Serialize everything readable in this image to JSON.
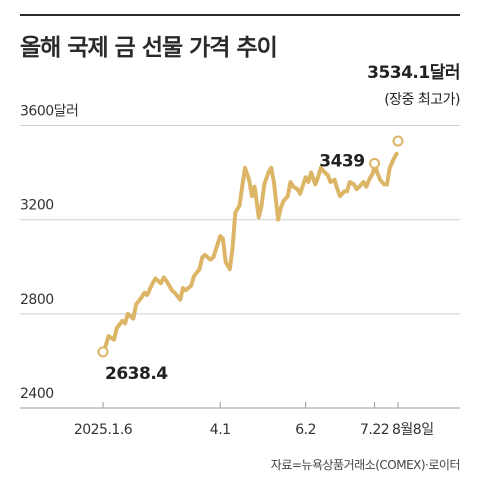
{
  "title": "올해 국제 금 선물 가격 추이",
  "source": "자료=뉴욕상품거래소(COMEX)·로이터",
  "colors": {
    "line": "#DDB567",
    "axis": "#999999",
    "text": "#222222"
  },
  "chart_data": {
    "type": "line",
    "title": "올해 국제 금 선물 가격 추이",
    "x_tick_labels": [
      "2025.1.6",
      "4.1",
      "6.2",
      "7.22",
      "8월8일"
    ],
    "x_tick_dates": [
      "2025-01-06",
      "2025-04-01",
      "2025-06-02",
      "2025-07-22",
      "2025-08-08"
    ],
    "y_ticks": [
      2400,
      2800,
      3200,
      3600
    ],
    "y_tick_labels": [
      "2400",
      "2800",
      "3200",
      "3600달러"
    ],
    "ylim": [
      2400,
      3700
    ],
    "grid": true,
    "annotations": {
      "start": {
        "date": "2025-01-06",
        "value": 2638.4,
        "label": "2638.4"
      },
      "previous_high": {
        "date": "2025-07-22",
        "value": 3439,
        "label": "3439"
      },
      "record": {
        "date": "2025-08-08",
        "value": 3534.1,
        "label": "3534.1달러",
        "note": "(장중 최고가)"
      }
    },
    "series": [
      {
        "x": [
          "2025-01-06",
          "2025-01-08",
          "2025-01-10",
          "2025-01-14",
          "2025-01-16",
          "2025-01-20",
          "2025-01-22",
          "2025-01-24",
          "2025-01-28",
          "2025-01-30",
          "2025-02-03",
          "2025-02-05",
          "2025-02-07",
          "2025-02-11",
          "2025-02-13",
          "2025-02-17",
          "2025-02-19",
          "2025-02-21",
          "2025-02-25",
          "2025-02-27",
          "2025-03-03",
          "2025-03-05",
          "2025-03-07",
          "2025-03-11",
          "2025-03-13",
          "2025-03-17",
          "2025-03-19",
          "2025-03-21",
          "2025-03-25",
          "2025-03-27",
          "2025-04-01",
          "2025-04-03",
          "2025-04-05",
          "2025-04-08",
          "2025-04-10",
          "2025-04-12",
          "2025-04-15",
          "2025-04-17",
          "2025-04-19",
          "2025-04-22",
          "2025-04-24",
          "2025-04-26",
          "2025-04-29",
          "2025-05-01",
          "2025-05-03",
          "2025-05-06",
          "2025-05-08",
          "2025-05-10",
          "2025-05-13",
          "2025-05-15",
          "2025-05-17",
          "2025-05-20",
          "2025-05-22",
          "2025-05-24",
          "2025-05-27",
          "2025-05-29",
          "2025-06-02",
          "2025-06-04",
          "2025-06-06",
          "2025-06-09",
          "2025-06-11",
          "2025-06-13",
          "2025-06-16",
          "2025-06-18",
          "2025-06-20",
          "2025-06-23",
          "2025-06-25",
          "2025-06-27",
          "2025-06-30",
          "2025-07-02",
          "2025-07-04",
          "2025-07-07",
          "2025-07-09",
          "2025-07-11",
          "2025-07-14",
          "2025-07-16",
          "2025-07-18",
          "2025-07-21",
          "2025-07-22",
          "2025-07-24",
          "2025-07-26",
          "2025-07-29",
          "2025-07-31",
          "2025-08-02",
          "2025-08-05",
          "2025-08-07"
        ],
        "y": [
          2640,
          2665,
          2705,
          2690,
          2740,
          2770,
          2760,
          2800,
          2780,
          2840,
          2870,
          2890,
          2880,
          2930,
          2950,
          2930,
          2955,
          2940,
          2900,
          2890,
          2860,
          2910,
          2900,
          2920,
          2960,
          2990,
          3040,
          3050,
          3030,
          3040,
          3130,
          3120,
          3020,
          2990,
          3080,
          3230,
          3260,
          3340,
          3420,
          3370,
          3300,
          3340,
          3210,
          3260,
          3350,
          3400,
          3420,
          3360,
          3200,
          3250,
          3280,
          3300,
          3360,
          3340,
          3330,
          3310,
          3380,
          3360,
          3400,
          3350,
          3380,
          3420,
          3400,
          3390,
          3360,
          3370,
          3330,
          3300,
          3320,
          3320,
          3360,
          3350,
          3330,
          3340,
          3360,
          3340,
          3370,
          3400,
          3439,
          3400,
          3370,
          3350,
          3350,
          3420,
          3460,
          3480
        ]
      }
    ]
  }
}
